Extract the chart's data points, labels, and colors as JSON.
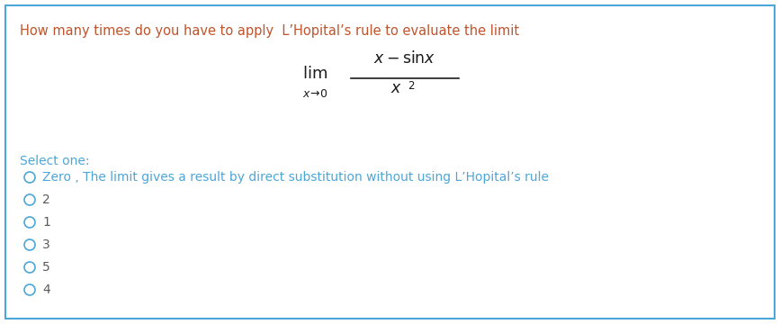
{
  "background_color": "#ffffff",
  "border_color": "#4da6d9",
  "title_text": "How many times do you have to apply  L’Hopital’s rule to evaluate the limit",
  "title_color": "#c0542c",
  "formula_color": "#1a1a1a",
  "select_one_text": "Select one:",
  "select_one_color": "#4da6d9",
  "options": [
    "Zero , The limit gives a result by direct substitution without using L’Hopital’s rule",
    "2",
    "1",
    "3",
    "5",
    "4"
  ],
  "option_color_first": "#4da6d9",
  "option_color_rest": "#4da6d9",
  "circle_color": "#4da6d9",
  "figsize": [
    8.67,
    3.6
  ],
  "dpi": 100
}
